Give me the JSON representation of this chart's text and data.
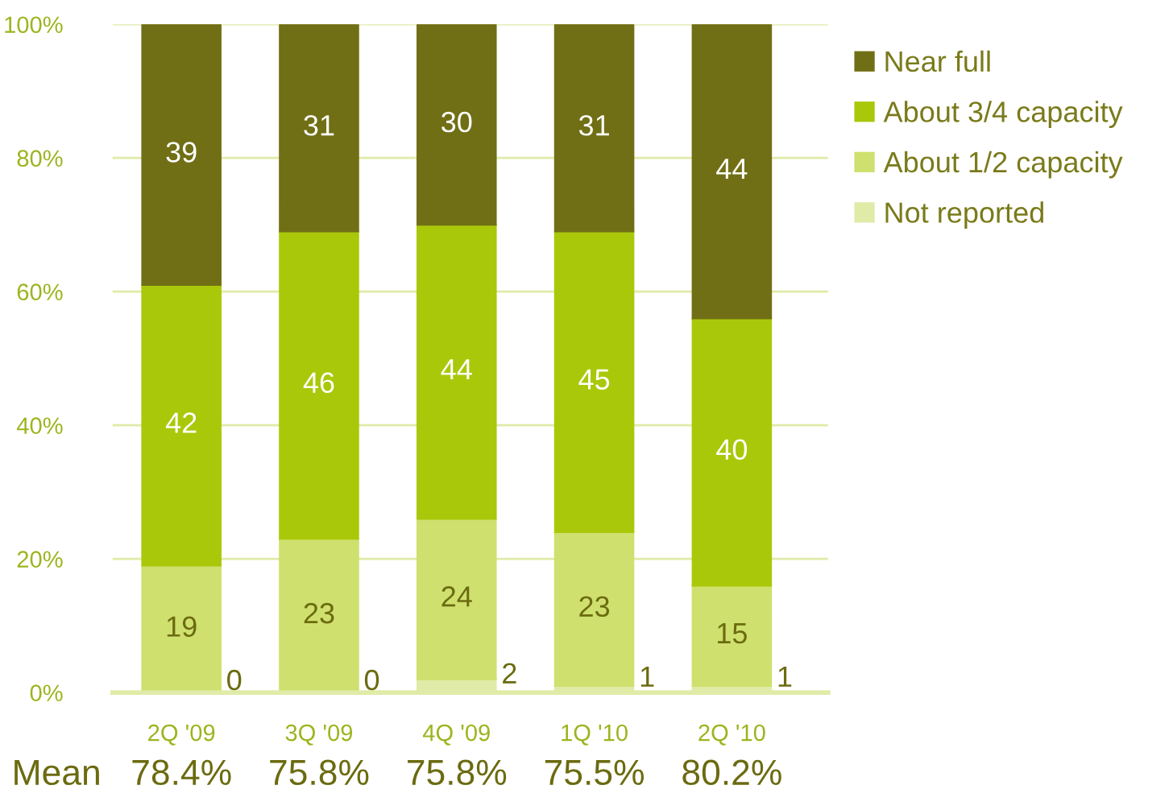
{
  "chart_data": {
    "type": "bar",
    "stacked": true,
    "categories": [
      "2Q '09",
      "3Q '09",
      "4Q '09",
      "1Q '10",
      "2Q '10"
    ],
    "series": [
      {
        "name": "Not reported",
        "color": "#e0eba8",
        "values": [
          0,
          0,
          2,
          1,
          1
        ],
        "value_labels": [
          "0",
          "0",
          "2",
          "1",
          "1"
        ]
      },
      {
        "name": "About 1/2 capacity",
        "color": "#cfe06e",
        "values": [
          19,
          23,
          24,
          23,
          15
        ]
      },
      {
        "name": "About 3/4 capacity",
        "color": "#aac80a",
        "values": [
          42,
          46,
          44,
          45,
          40
        ]
      },
      {
        "name": "Near full",
        "color": "#716f16",
        "values": [
          39,
          31,
          30,
          31,
          44
        ]
      }
    ],
    "ylim": [
      0,
      100
    ],
    "yticks": [
      {
        "value": 0,
        "label": "0%"
      },
      {
        "value": 20,
        "label": "20%"
      },
      {
        "value": 40,
        "label": "40%"
      },
      {
        "value": 60,
        "label": "60%"
      },
      {
        "value": 80,
        "label": "80%"
      },
      {
        "value": 100,
        "label": "100%"
      }
    ],
    "grid": "y",
    "legend": "top right",
    "data_labels": true,
    "annotations": [
      "Mean",
      "78.4%",
      "75.8%",
      "75.8%",
      "75.5%",
      "80.2%"
    ]
  }
}
